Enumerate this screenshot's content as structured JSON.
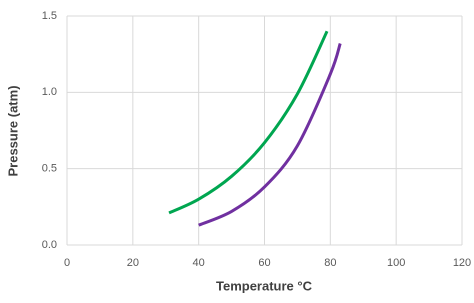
{
  "chart_data": {
    "type": "line",
    "x_label": "Temperature °C",
    "y_label": "Pressure  (atm)",
    "series": [
      {
        "color": "#00a650",
        "x": [
          31,
          40,
          50,
          60,
          70,
          79
        ],
        "values": [
          0.21,
          0.3,
          0.45,
          0.67,
          0.99,
          1.4
        ]
      },
      {
        "color": "#7030a0",
        "x": [
          40,
          50,
          60,
          70,
          80,
          83
        ],
        "values": [
          0.13,
          0.22,
          0.38,
          0.65,
          1.12,
          1.32
        ]
      }
    ],
    "xlim": [
      0,
      120
    ],
    "xticks": [
      0,
      20,
      40,
      60,
      80,
      100,
      120
    ],
    "ylim": [
      0,
      1.5
    ],
    "yticks": [
      {
        "value": 0,
        "label": "0.0"
      },
      0.5,
      {
        "value": 1,
        "label": "1.0"
      },
      1.5
    ],
    "grid": true
  }
}
